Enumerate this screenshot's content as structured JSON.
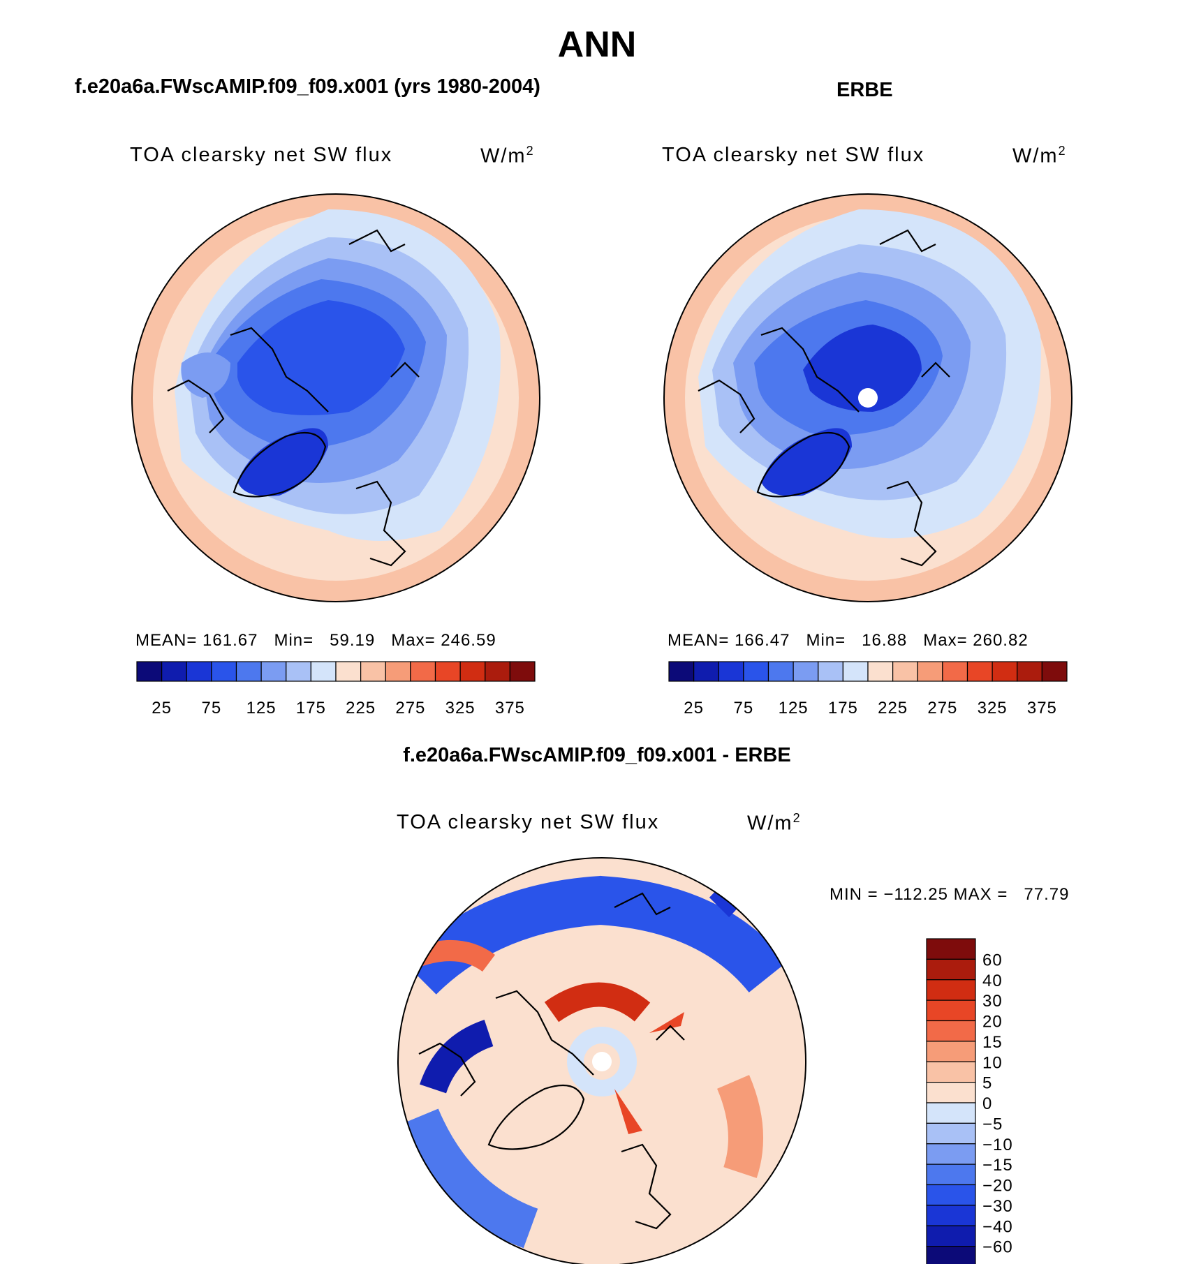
{
  "main_title": "ANN",
  "panels": {
    "model": {
      "title": "f.e20a6a.FWscAMIP.f09_f09.x001 (yrs 1980-2004)",
      "variable": "TOA clearsky net SW flux",
      "units_base": "W/m",
      "units_exp": "2",
      "stats": {
        "mean_label": "MEAN=",
        "mean": "161.67",
        "min_label": "Min=",
        "min": "59.19",
        "max_label": "Max=",
        "max": "246.59"
      }
    },
    "obs": {
      "title": "ERBE",
      "variable": "TOA clearsky net SW flux",
      "units_base": "W/m",
      "units_exp": "2",
      "stats": {
        "mean_label": "MEAN=",
        "mean": "166.47",
        "min_label": "Min=",
        "min": "16.88",
        "max_label": "Max=",
        "max": "260.82"
      }
    },
    "diff": {
      "title": "f.e20a6a.FWscAMIP.f09_f09.x001 - ERBE",
      "variable": "TOA clearsky net SW flux",
      "units_base": "W/m",
      "units_exp": "2",
      "stats": {
        "min_label": "MIN =",
        "min": "−112.25",
        "max_label": "MAX =",
        "max": "77.79"
      }
    }
  },
  "chart_data": [
    {
      "type": "heatmap",
      "projection": "polar-stereographic-north",
      "title": "f.e20a6a.FWscAMIP.f09_f09.x001 (yrs 1980-2004)",
      "variable": "TOA clearsky net SW flux",
      "units": "W/m^2",
      "colorbar": {
        "levels": [
          25,
          50,
          75,
          100,
          125,
          150,
          175,
          200,
          225,
          250,
          275,
          300,
          325,
          350,
          375
        ],
        "tick_labels": [
          "25",
          "75",
          "125",
          "175",
          "225",
          "275",
          "325",
          "375"
        ],
        "colors": [
          "#0c0a78",
          "#0f1cae",
          "#1a36d6",
          "#2a54ea",
          "#4d78ee",
          "#7b9cf2",
          "#a9c1f6",
          "#d4e4fa",
          "#fbe0cf",
          "#f9c2a6",
          "#f69c78",
          "#f26a48",
          "#e84626",
          "#d12d12",
          "#ab1c0d",
          "#7e0c0c"
        ]
      },
      "mean": 161.67,
      "min": 59.19,
      "max": 246.59
    },
    {
      "type": "heatmap",
      "projection": "polar-stereographic-north",
      "title": "ERBE",
      "variable": "TOA clearsky net SW flux",
      "units": "W/m^2",
      "colorbar": {
        "levels": [
          25,
          50,
          75,
          100,
          125,
          150,
          175,
          200,
          225,
          250,
          275,
          300,
          325,
          350,
          375
        ],
        "tick_labels": [
          "25",
          "75",
          "125",
          "175",
          "225",
          "275",
          "325",
          "375"
        ],
        "colors": [
          "#0c0a78",
          "#0f1cae",
          "#1a36d6",
          "#2a54ea",
          "#4d78ee",
          "#7b9cf2",
          "#a9c1f6",
          "#d4e4fa",
          "#fbe0cf",
          "#f9c2a6",
          "#f69c78",
          "#f26a48",
          "#e84626",
          "#d12d12",
          "#ab1c0d",
          "#7e0c0c"
        ]
      },
      "mean": 166.47,
      "min": 16.88,
      "max": 260.82
    },
    {
      "type": "heatmap",
      "projection": "polar-stereographic-north",
      "title": "f.e20a6a.FWscAMIP.f09_f09.x001 - ERBE",
      "variable": "TOA clearsky net SW flux",
      "units": "W/m^2",
      "colorbar": {
        "levels": [
          60,
          40,
          30,
          20,
          15,
          10,
          5,
          0,
          -5,
          -10,
          -15,
          -20,
          -30,
          -40,
          -60
        ],
        "tick_labels": [
          "60",
          "40",
          "30",
          "20",
          "15",
          "10",
          "5",
          "0",
          "−5",
          "−10",
          "−15",
          "−20",
          "−30",
          "−40",
          "−60"
        ],
        "colors": [
          "#7e0c0c",
          "#ab1c0d",
          "#d12d12",
          "#e84626",
          "#f26a48",
          "#f69c78",
          "#f9c2a6",
          "#fbe0cf",
          "#d4e4fa",
          "#a9c1f6",
          "#7b9cf2",
          "#4d78ee",
          "#2a54ea",
          "#1a36d6",
          "#0f1cae",
          "#0c0a78"
        ]
      },
      "min": -112.25,
      "max": 77.79
    }
  ]
}
